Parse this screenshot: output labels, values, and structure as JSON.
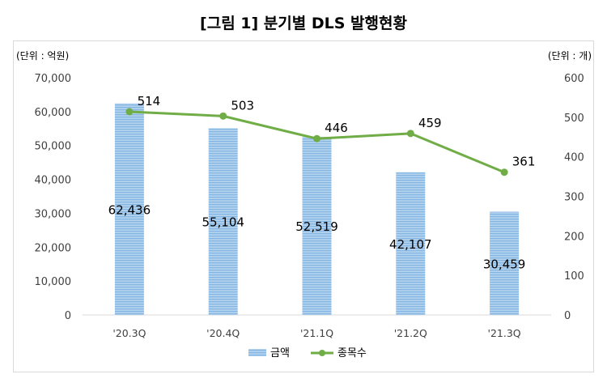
{
  "title": "[그림 1] 분기별 DLS 발행현황",
  "left_unit": "(단위 : 억원)",
  "right_unit": "(단위 : 개)",
  "colors": {
    "bar": "#9dc3e6",
    "bar_stripe": "#7fb0de",
    "line": "#70ad47"
  },
  "chart_data": {
    "type": "bar",
    "categories": [
      "'20.3Q",
      "'20.4Q",
      "'21.1Q",
      "'21.2Q",
      "'21.3Q"
    ],
    "series": [
      {
        "name": "금액",
        "type": "bar",
        "axis": "left",
        "values": [
          62436,
          55104,
          52519,
          42107,
          30459
        ],
        "labels": [
          "62,436",
          "55,104",
          "52,519",
          "42,107",
          "30,459"
        ]
      },
      {
        "name": "종목수",
        "type": "line",
        "axis": "right",
        "values": [
          514,
          503,
          446,
          459,
          361
        ],
        "labels": [
          "514",
          "503",
          "446",
          "459",
          "361"
        ]
      }
    ],
    "ylim_left": [
      0,
      70000
    ],
    "ylim_right": [
      0,
      600
    ],
    "yticks_left": [
      "0",
      "10,000",
      "20,000",
      "30,000",
      "40,000",
      "50,000",
      "60,000",
      "70,000"
    ],
    "yticks_right": [
      "0",
      "100",
      "200",
      "300",
      "400",
      "500",
      "600"
    ],
    "legend": "bottom",
    "grid": false
  }
}
